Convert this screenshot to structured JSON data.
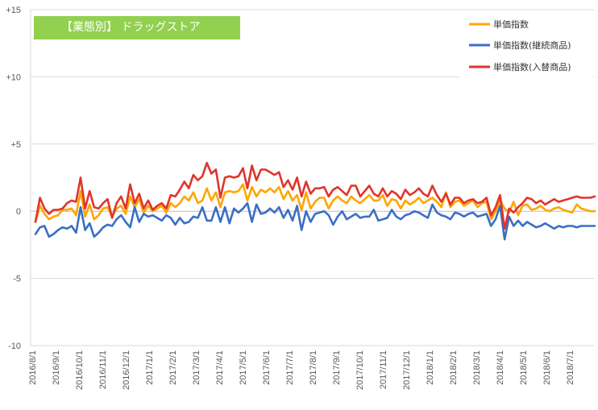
{
  "chart_data": {
    "type": "line",
    "title": "【業態別】 ドラッグストア",
    "ylim": [
      -10,
      15
    ],
    "y_ticks": [
      "+15",
      "+10",
      "+5",
      "0",
      "-5",
      "-10"
    ],
    "y_tick_values": [
      15,
      10,
      5,
      0,
      -5,
      -10
    ],
    "x_tick_labels": [
      "2016/8/1",
      "2016/9/1",
      "2016/10/1",
      "2016/11/1",
      "2016/12/1",
      "2017/1/1",
      "2017/2/1",
      "2017/3/1",
      "2017/4/1",
      "2017/5/1",
      "2017/6/1",
      "2017/7/1",
      "2017/8/1",
      "2017/9/1",
      "2017/10/1",
      "2017/11/1",
      "2017/12/1",
      "2018/1/1",
      "2018/2/1",
      "2018/3/1",
      "2018/4/1",
      "2018/5/1",
      "2018/6/1",
      "2018/7/1"
    ],
    "grid": true,
    "legend_position": "top-right",
    "series": [
      {
        "name": "単価指数",
        "color": "#ffa500",
        "values": [
          -0.8,
          0.4,
          -0.2,
          -0.6,
          -0.4,
          -0.3,
          0.1,
          0.1,
          0.2,
          -0.3,
          1.5,
          -0.4,
          0.5,
          -0.6,
          -0.3,
          0.2,
          0.3,
          -0.4,
          0.2,
          0.4,
          -0.2,
          1.1,
          0.3,
          0.9,
          -0.1,
          0.4,
          0,
          0.2,
          0.4,
          -0.1,
          0.6,
          0.3,
          0.6,
          1.1,
          0.8,
          1.4,
          0.6,
          0.8,
          1.7,
          0.8,
          1.4,
          0.3,
          1.4,
          1.5,
          1.4,
          1.5,
          2,
          0.8,
          1.8,
          1.1,
          1.6,
          1.4,
          1.7,
          1.4,
          1.8,
          0.9,
          1.5,
          0.8,
          1.2,
          0.1,
          1.4,
          0.2,
          0.7,
          1,
          1,
          0.2,
          0.8,
          1.1,
          0.8,
          0.6,
          1.1,
          0.8,
          0.6,
          0.9,
          1.2,
          0.8,
          0.8,
          1.2,
          0.4,
          0.9,
          0.8,
          0.2,
          0.8,
          0.5,
          0.7,
          1,
          0.6,
          0.8,
          1,
          0.7,
          0.3,
          1.4,
          0.3,
          0.7,
          0.8,
          0.4,
          0.6,
          0.8,
          0.3,
          0.6,
          0.7,
          -0.6,
          0,
          0.8,
          0.2,
          -0.1,
          0.7,
          -0.3,
          0.4,
          0.5,
          0.1,
          0.2,
          0.4,
          0.1,
          0,
          0.2,
          0.3,
          0.1,
          0,
          -0.1,
          0.5,
          0.2,
          0.1,
          0,
          0
        ],
        "label_color": "#ffa500"
      },
      {
        "name": "単価指数(継続商品)",
        "color": "#3a6fc4",
        "values": [
          -1.7,
          -1.2,
          -1.1,
          -1.9,
          -1.7,
          -1.4,
          -1.2,
          -1.3,
          -1.1,
          -1.6,
          0.3,
          -1.4,
          -0.9,
          -1.9,
          -1.6,
          -1.2,
          -1,
          -1.1,
          -0.6,
          -0.3,
          -0.8,
          -1.2,
          0.3,
          -0.8,
          -0.2,
          -0.4,
          -0.3,
          -0.5,
          -0.7,
          -0.3,
          -0.5,
          -1,
          -0.5,
          -0.9,
          -0.8,
          -0.4,
          -0.5,
          0.3,
          -0.7,
          -0.7,
          0.3,
          -0.8,
          0.3,
          -0.9,
          0.2,
          -0.1,
          0.2,
          0.6,
          -0.8,
          0.5,
          -0.2,
          -0.1,
          0.2,
          -0.1,
          0.3,
          -0.5,
          0.1,
          -0.7,
          0.4,
          -1.4,
          0,
          -0.8,
          -0.2,
          -0.1,
          0,
          -0.3,
          -1,
          -0.4,
          0,
          -0.6,
          -0.4,
          -0.2,
          -0.5,
          -0.4,
          -0.4,
          0.1,
          -0.7,
          -0.6,
          -0.5,
          0.1,
          -0.4,
          -0.6,
          -0.3,
          -0.2,
          0,
          -0.1,
          -0.3,
          -0.5,
          0.5,
          -0.1,
          -0.3,
          -0.4,
          -0.6,
          -0.1,
          -0.2,
          -0.4,
          -0.2,
          -0.1,
          -0.4,
          -0.3,
          -0.2,
          -1.1,
          -0.6,
          0.4,
          -2.1,
          -0.4,
          -1.1,
          -0.7,
          -1.1,
          -0.8,
          -1,
          -1.2,
          -1.1,
          -0.9,
          -1.1,
          -1.3,
          -1.1,
          -1.2,
          -1.1,
          -1.1,
          -1.2,
          -1.1,
          -1.1,
          -1.1,
          -1.1
        ],
        "label_color": "#3a6fc4"
      },
      {
        "name": "単価指数(入替商品)",
        "color": "#e0342a",
        "values": [
          -0.8,
          1,
          0.2,
          -0.2,
          0.1,
          0.1,
          0.2,
          0.6,
          0.8,
          0.7,
          2.5,
          0.2,
          1.5,
          0.3,
          0.2,
          0.6,
          0.9,
          -0.5,
          0.6,
          1.1,
          0.2,
          2,
          0.6,
          1.3,
          0.2,
          0.8,
          0.1,
          0.4,
          0.6,
          0.2,
          1.2,
          1.1,
          1.6,
          2.2,
          1.7,
          2.7,
          2.3,
          2.6,
          3.6,
          2.8,
          3.1,
          1,
          2.5,
          2.6,
          2.5,
          2.6,
          3.2,
          1.7,
          3.4,
          2.3,
          3.1,
          3.1,
          2.9,
          2.7,
          2.9,
          1.8,
          2.3,
          1.6,
          2.5,
          1.1,
          2.2,
          1.3,
          1.7,
          1.7,
          1.8,
          1.1,
          1.6,
          1.8,
          1.5,
          1.2,
          1.9,
          1.9,
          1.1,
          1.5,
          1.9,
          1.3,
          1.1,
          1.7,
          1.1,
          1.5,
          1.3,
          0.9,
          1.6,
          1.2,
          1.4,
          1.7,
          1.3,
          1.1,
          1.9,
          1.2,
          0.7,
          1.3,
          0.5,
          1,
          1,
          0.6,
          0.8,
          0.9,
          0.6,
          0.7,
          1,
          -0.3,
          0.3,
          1.2,
          -1.3,
          0.2,
          -0.1,
          0.3,
          0.6,
          1,
          0.9,
          0.6,
          0.8,
          0.5,
          0.7,
          0.9,
          0.7,
          0.8,
          0.9,
          1,
          1.1,
          1,
          1,
          1,
          1.1
        ],
        "label_color": "#e0342a"
      }
    ]
  }
}
